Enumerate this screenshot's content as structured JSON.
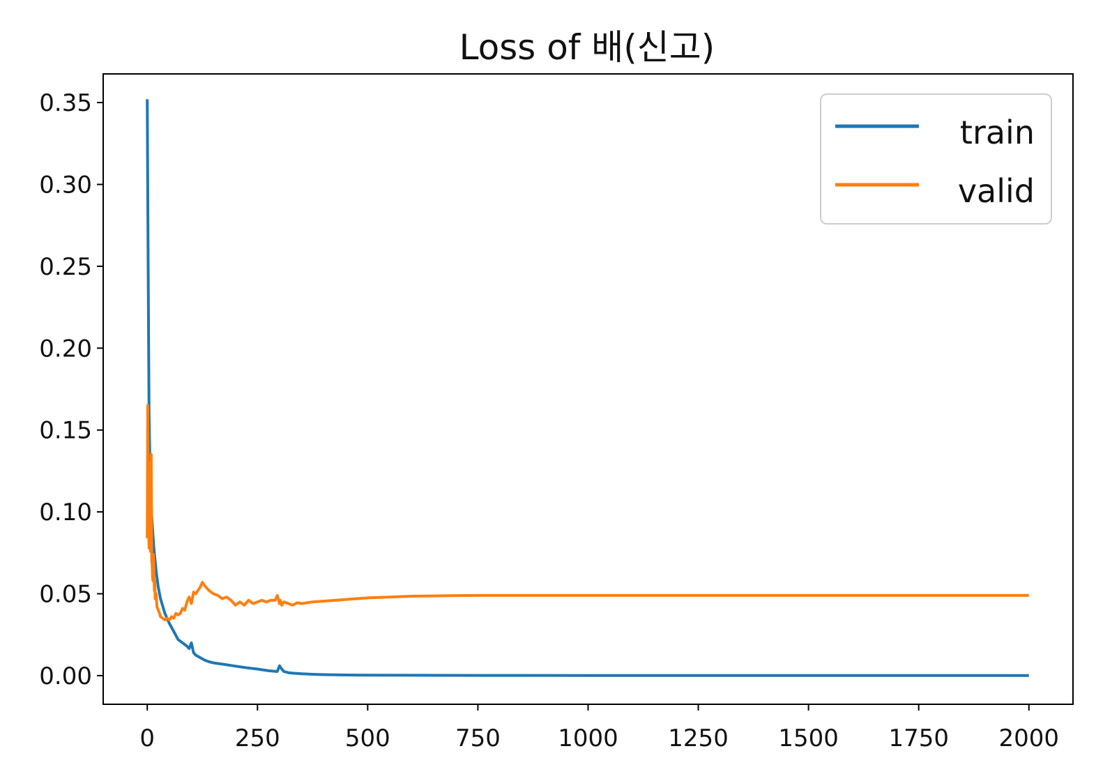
{
  "chart_data": {
    "type": "line",
    "title": "Loss of 배(신고)",
    "xlabel": "",
    "ylabel": "",
    "xlim": [
      -100,
      2100
    ],
    "ylim": [
      -0.0175,
      0.3675
    ],
    "xticks": [
      0,
      250,
      500,
      750,
      1000,
      1250,
      1500,
      1750,
      2000
    ],
    "xtick_labels": [
      "0",
      "250",
      "500",
      "750",
      "1000",
      "1250",
      "1500",
      "1750",
      "2000"
    ],
    "yticks": [
      0.0,
      0.05,
      0.1,
      0.15,
      0.2,
      0.25,
      0.3,
      0.35
    ],
    "ytick_labels": [
      "0.00",
      "0.05",
      "0.10",
      "0.15",
      "0.20",
      "0.25",
      "0.30",
      "0.35"
    ],
    "grid": false,
    "legend_position": "top-right",
    "series": [
      {
        "name": "train",
        "color": "#1f77b4",
        "x": [
          0,
          2,
          4,
          6,
          8,
          10,
          15,
          20,
          25,
          30,
          40,
          50,
          60,
          70,
          80,
          90,
          95,
          100,
          105,
          110,
          120,
          130,
          140,
          150,
          175,
          200,
          225,
          250,
          275,
          295,
          300,
          305,
          310,
          320,
          330,
          350,
          375,
          400,
          450,
          500,
          600,
          750,
          1000,
          1250,
          1500,
          1750,
          2000
        ],
        "y": [
          0.352,
          0.25,
          0.16,
          0.13,
          0.11,
          0.097,
          0.078,
          0.064,
          0.054,
          0.047,
          0.038,
          0.032,
          0.027,
          0.022,
          0.02,
          0.018,
          0.0165,
          0.02,
          0.014,
          0.0125,
          0.011,
          0.0095,
          0.0085,
          0.0078,
          0.0068,
          0.0058,
          0.0048,
          0.004,
          0.003,
          0.0025,
          0.006,
          0.004,
          0.0025,
          0.0018,
          0.0015,
          0.0011,
          0.0008,
          0.0006,
          0.0004,
          0.0003,
          0.0002,
          0.00015,
          0.0001,
          0.0001,
          0.0001,
          0.0001,
          0.0001
        ]
      },
      {
        "name": "valid",
        "color": "#ff7f0e",
        "x": [
          0,
          1,
          2,
          3,
          4,
          5,
          6,
          7,
          8,
          9,
          10,
          11,
          12,
          13,
          14,
          15,
          16,
          17,
          18,
          20,
          22,
          25,
          28,
          30,
          35,
          40,
          45,
          50,
          55,
          60,
          65,
          70,
          75,
          80,
          85,
          90,
          95,
          100,
          105,
          110,
          115,
          120,
          125,
          130,
          140,
          150,
          160,
          170,
          180,
          190,
          200,
          210,
          220,
          230,
          240,
          250,
          260,
          270,
          280,
          290,
          295,
          300,
          302,
          305,
          310,
          320,
          330,
          340,
          350,
          375,
          400,
          450,
          500,
          550,
          600,
          650,
          700,
          750,
          800,
          900,
          1000,
          1250,
          1500,
          1750,
          2000
        ],
        "y": [
          0.084,
          0.165,
          0.12,
          0.09,
          0.078,
          0.13,
          0.085,
          0.076,
          0.079,
          0.135,
          0.07,
          0.068,
          0.06,
          0.058,
          0.074,
          0.064,
          0.052,
          0.058,
          0.047,
          0.05,
          0.042,
          0.04,
          0.038,
          0.036,
          0.035,
          0.034,
          0.035,
          0.034,
          0.036,
          0.035,
          0.038,
          0.037,
          0.038,
          0.041,
          0.04,
          0.045,
          0.048,
          0.044,
          0.051,
          0.05,
          0.052,
          0.054,
          0.057,
          0.055,
          0.052,
          0.05,
          0.049,
          0.047,
          0.048,
          0.046,
          0.043,
          0.045,
          0.043,
          0.046,
          0.044,
          0.045,
          0.046,
          0.045,
          0.046,
          0.046,
          0.049,
          0.044,
          0.046,
          0.043,
          0.045,
          0.044,
          0.043,
          0.0445,
          0.044,
          0.045,
          0.0455,
          0.0465,
          0.0475,
          0.048,
          0.0485,
          0.0487,
          0.0489,
          0.049,
          0.049,
          0.049,
          0.049,
          0.049,
          0.049,
          0.049,
          0.049
        ]
      }
    ]
  }
}
